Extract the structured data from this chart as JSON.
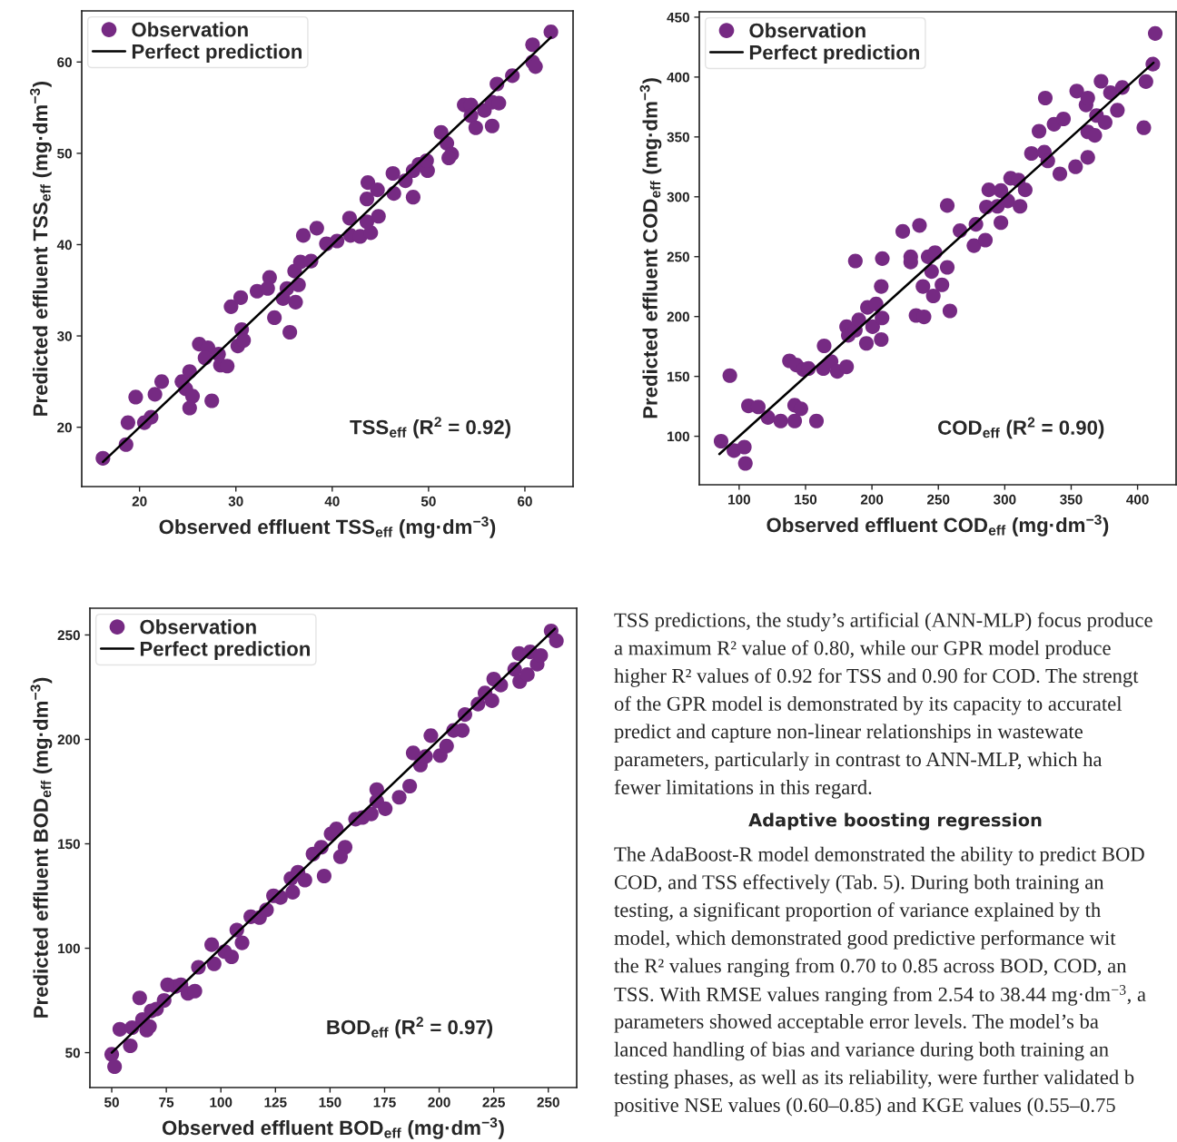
{
  "chart_data": [
    {
      "type": "scatter",
      "xlabel": "Observed effluent TSS$_{eff}$ (mg·dm$^{−3}$)",
      "ylabel": "Predicted effluent TSS$_{eff}$ (mg·dm$^{−3}$)",
      "annotations": [
        "TSS$_{eff}$ (R$^{2}$ = 0.92)"
      ],
      "xlim": [
        14,
        65
      ],
      "ylim": [
        13.5,
        65.6
      ],
      "xticks": [
        20,
        30,
        40,
        50,
        60
      ],
      "yticks": [
        20,
        30,
        40,
        50,
        60
      ],
      "legend": "top left",
      "series": [
        {
          "name": "Observation",
          "color": "#762a83",
          "marker": "circle",
          "x": [
            16.2,
            18.6,
            18.8,
            19.6,
            20.5,
            21.2,
            21.6,
            22.3,
            24.4,
            25.2,
            24.8,
            25.5,
            25.2,
            27.5,
            26.2,
            27.1,
            26.8,
            28.2,
            28.4,
            29.1,
            29.5,
            30.5,
            30.6,
            30.2,
            30.8,
            32.2,
            33.5,
            33.3,
            34.0,
            35.3,
            34.9,
            35.6,
            36.2,
            36.5,
            36.1,
            36.7,
            37.8,
            37.0,
            38.4,
            39.4,
            40.5,
            41.9,
            41.8,
            42.9,
            44.0,
            43.6,
            44.8,
            43.6,
            43.7,
            44.7,
            46.3,
            46.4,
            47.6,
            48.4,
            48.4,
            49.0,
            49.9,
            49.8,
            51.3,
            51.9,
            52.4,
            52.1,
            53.7,
            54.4,
            54.4,
            54.9,
            55.8,
            56.6,
            56.6,
            57.3,
            57.1,
            58.7,
            60.8,
            60.8,
            61.1,
            62.7
          ],
          "values": [
            16.6,
            18.1,
            20.5,
            23.3,
            20.5,
            21.1,
            23.6,
            25.0,
            25.0,
            26.1,
            24.2,
            23.4,
            22.1,
            22.9,
            29.1,
            28.7,
            27.6,
            28.0,
            26.8,
            26.7,
            33.2,
            34.2,
            30.7,
            28.9,
            29.5,
            34.9,
            36.4,
            35.2,
            32.0,
            35.2,
            34.1,
            30.4,
            33.7,
            35.6,
            37.1,
            38.1,
            38.2,
            41.0,
            41.8,
            40.1,
            40.4,
            41.0,
            42.9,
            40.9,
            41.3,
            42.5,
            43.1,
            45.0,
            46.8,
            46.0,
            47.8,
            45.6,
            47.0,
            45.2,
            48.1,
            48.8,
            48.1,
            49.2,
            52.3,
            51.1,
            49.9,
            49.5,
            55.3,
            55.3,
            54.1,
            52.8,
            54.7,
            53.0,
            55.6,
            55.5,
            57.6,
            58.5,
            61.9,
            60.0,
            59.5,
            63.3
          ]
        },
        {
          "name": "Perfect prediction",
          "type": "line",
          "color": "#000000",
          "x": [
            16.2,
            62.7
          ],
          "values": [
            16.2,
            62.7
          ]
        }
      ]
    },
    {
      "type": "scatter",
      "xlabel": "Observed effluent COD$_{eff}$ (mg·dm$^{−3}$)",
      "ylabel": "Predicted effluent COD$_{eff}$ (mg·dm$^{−3}$)",
      "annotations": [
        "COD$_{eff}$ (R$^{2}$ = 0.90)"
      ],
      "xlim": [
        70,
        429
      ],
      "ylim": [
        59.5,
        454.5
      ],
      "xticks": [
        100,
        150,
        200,
        250,
        300,
        350,
        400
      ],
      "yticks": [
        100,
        150,
        200,
        250,
        300,
        350,
        400,
        450
      ],
      "legend": "top left",
      "series": [
        {
          "name": "Observation",
          "color": "#762a83",
          "marker": "circle",
          "x": [
            86.4,
            93.0,
            96.1,
            103.9,
            104.7,
            107.0,
            114.4,
            121.7,
            131.3,
            141.8,
            141.8,
            146.5,
            158.2,
            137.9,
            143.1,
            148.3,
            152.2,
            163.4,
            164.0,
            169.2,
            173.9,
            180.9,
            180.9,
            182.2,
            187.5,
            187.5,
            190.1,
            195.8,
            196.6,
            200.5,
            203.1,
            207.6,
            207.0,
            207.0,
            207.8,
            223.2,
            229.2,
            229.2,
            235.8,
            233.2,
            239.2,
            238.4,
            242.3,
            244.9,
            246.2,
            247.5,
            252.7,
            256.7,
            258.7,
            256.7,
            266.3,
            276.8,
            278.3,
            285.4,
            286.2,
            288.0,
            294.5,
            297.1,
            297.1,
            302.3,
            304.4,
            310.2,
            311.5,
            315.4,
            320.1,
            325.8,
            329.8,
            330.5,
            332.4,
            337.1,
            341.5,
            344.2,
            353.3,
            354.2,
            362.5,
            361.2,
            362.5,
            362.5,
            367.8,
            369.1,
            372.5,
            375.6,
            379.6,
            384.8,
            388.5,
            404.7,
            406.3,
            411.5,
            413.3
          ],
          "values": [
            95.9,
            150.7,
            88.0,
            91.0,
            77.3,
            125.4,
            124.5,
            115.7,
            112.8,
            112.8,
            125.9,
            123.0,
            112.8,
            163.0,
            159.5,
            155.7,
            156.6,
            156.6,
            175.5,
            162.4,
            154.2,
            158.0,
            191.5,
            184.3,
            188.6,
            246.4,
            197.2,
            177.6,
            207.6,
            191.5,
            210.5,
            198.8,
            180.8,
            225.1,
            248.4,
            271.1,
            245.5,
            249.9,
            276.1,
            200.9,
            199.7,
            225.1,
            249.9,
            237.6,
            217.2,
            253.4,
            226.5,
            241.1,
            204.7,
            292.7,
            271.7,
            259.2,
            277.0,
            263.8,
            291.5,
            305.8,
            292.1,
            278.4,
            305.2,
            296.5,
            315.5,
            314.0,
            292.1,
            305.8,
            336.2,
            354.8,
            337.3,
            382.5,
            330.0,
            360.6,
            319.2,
            365.0,
            325.1,
            388.3,
            332.9,
            376.7,
            382.5,
            354.2,
            351.3,
            367.9,
            396.5,
            362.1,
            386.9,
            372.3,
            391.3,
            357.7,
            396.2,
            410.8,
            436.4
          ]
        },
        {
          "name": "Perfect prediction",
          "type": "line",
          "color": "#000000",
          "x": [
            85.1,
            412.0
          ],
          "values": [
            85.1,
            412.0
          ]
        }
      ]
    },
    {
      "type": "scatter",
      "xlabel": "Observed effluent BOD$_{eff}$ (mg·dm$^{−3}$)",
      "ylabel": "Predicted effluent BOD$_{eff}$ (mg·dm$^{−3}$)",
      "annotations": [
        "BOD$_{eff}$ (R$^{2}$ = 0.97)"
      ],
      "xlim": [
        40,
        263
      ],
      "ylim": [
        33.3,
        262.8
      ],
      "xticks": [
        50,
        75,
        100,
        125,
        150,
        175,
        200,
        225,
        250
      ],
      "yticks": [
        50,
        100,
        150,
        200,
        250
      ],
      "legend": "top left",
      "series": [
        {
          "name": "Observation",
          "color": "#762a83",
          "marker": "circle",
          "x": [
            50.0,
            51.3,
            53.7,
            58.5,
            59.3,
            62.8,
            64.1,
            66.0,
            67.3,
            68.1,
            70.5,
            74.0,
            75.6,
            79.3,
            81.7,
            84.9,
            88.1,
            89.7,
            96.9,
            95.8,
            101.7,
            104.9,
            107.3,
            109.7,
            113.7,
            117.7,
            120.9,
            124.1,
            127.3,
            132.1,
            132.9,
            135.3,
            138.5,
            147.3,
            142.2,
            146.0,
            150.5,
            152.9,
            156.9,
            154.8,
            161.7,
            164.9,
            168.9,
            171.4,
            171.4,
            175.3,
            181.7,
            186.5,
            188.1,
            191.4,
            193.8,
            196.2,
            200.5,
            203.4,
            206.6,
            210.6,
            211.8,
            217.8,
            221.0,
            224.2,
            225.0,
            228.2,
            234.6,
            236.6,
            236.9,
            240.4,
            241.7,
            244.9,
            246.5,
            251.3,
            253.7
          ],
          "values": [
            49.2,
            43.3,
            61.2,
            53.3,
            62.0,
            76.2,
            65.9,
            60.8,
            62.5,
            70.0,
            70.9,
            75.0,
            82.5,
            81.7,
            82.5,
            78.4,
            79.5,
            90.9,
            92.5,
            101.7,
            98.4,
            95.9,
            108.7,
            102.6,
            115.1,
            114.7,
            118.4,
            125.1,
            124.3,
            133.4,
            126.8,
            136.4,
            132.6,
            134.6,
            145.1,
            148.4,
            154.8,
            157.1,
            148.4,
            143.8,
            161.8,
            162.6,
            164.3,
            176.0,
            170.5,
            166.8,
            172.3,
            177.6,
            193.5,
            187.7,
            191.8,
            201.8,
            192.3,
            196.8,
            204.3,
            204.3,
            211.9,
            216.9,
            222.2,
            218.5,
            228.9,
            226.0,
            233.5,
            241.1,
            227.7,
            231.0,
            241.9,
            236.0,
            240.2,
            251.9,
            247.2
          ]
        },
        {
          "name": "Perfect prediction",
          "type": "line",
          "color": "#000000",
          "x": [
            50.0,
            253.0
          ],
          "values": [
            50.0,
            253.0
          ]
        }
      ]
    },
    {
      "type": "other",
      "annotations": [
        "TSS predictions, the study’s artificial (ANN-MLP) focus produce",
        "a maximum R² value of 0.80, while our GPR model produce",
        "higher R² values of 0.92 for TSS and 0.90 for COD. The strengt",
        "of the GPR model is demonstrated by its capacity to accuratel",
        "predict and capture non-linear relationships in wastewate",
        "parameters, particularly in contrast to ANN-MLP, which ha",
        "fewer limitations in this regard."
      ]
    },
    {
      "type": "other",
      "title": "Adaptive boosting regression",
      "annotations": [
        "The AdaBoost-R model demonstrated the ability to predict BOD",
        "COD, and TSS effectively (Tab. 5). During both training an",
        "testing, a significant proportion of variance explained by th",
        "model, which demonstrated good predictive performance wit",
        "the R² values ranging from 0.70 to 0.85 across BOD, COD, an",
        "TSS. With RMSE values ranging from 2.54 to 38.44 mg·dm$^{−3}$, a",
        "parameters showed acceptable error levels. The model’s ba",
        "lanced handling of bias and variance during both training an",
        "testing phases, as well as its reliability, were further validated b",
        "positive NSE values (0.60–0.85) and KGE values (0.55–0.75"
      ]
    }
  ]
}
